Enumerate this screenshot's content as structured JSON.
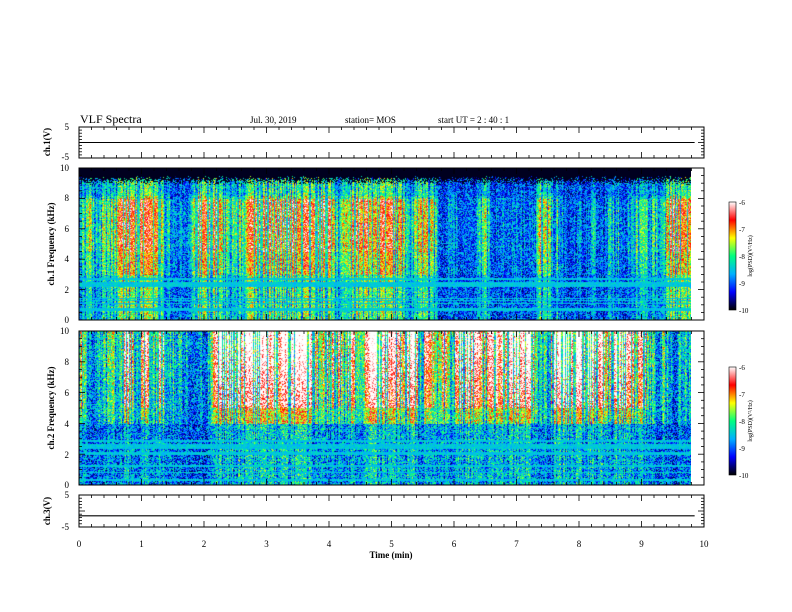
{
  "header": {
    "title": "VLF Spectra",
    "date": "Jul. 30, 2019",
    "station": "station= MOS",
    "start_ut": "start UT =  2 : 40 : 1"
  },
  "colors": {
    "colormap": [
      "#000000",
      "#0000ff",
      "#00b0ff",
      "#00ff80",
      "#ffff00",
      "#ff0000",
      "#ffffff"
    ]
  },
  "chart_data": [
    {
      "type": "line",
      "panel": "ch1-voltage",
      "ylabel": "ch.1(V)",
      "ylim": [
        -5,
        5
      ],
      "yticks": [
        5,
        -5
      ],
      "xlim": [
        0,
        10
      ],
      "series": [
        {
          "x": [
            0,
            9.85
          ],
          "y": [
            0,
            0
          ]
        }
      ]
    },
    {
      "type": "heatmap",
      "panel": "ch1-spectrogram",
      "ylabel": "ch.1 Frequency (kHz)",
      "ylim": [
        0,
        10
      ],
      "yticks": [
        0,
        2,
        4,
        6,
        8,
        10
      ],
      "xlim": [
        0,
        10
      ],
      "data_xmax": 9.85,
      "black_band_above_khz": 9.2,
      "colorbar": {
        "label": "log(PSD)(V²/Hz)",
        "range": [
          -10,
          -6
        ],
        "ticks": [
          -6,
          -7,
          -8,
          -9,
          -10
        ]
      }
    },
    {
      "type": "heatmap",
      "panel": "ch2-spectrogram",
      "ylabel": "ch.2 Frequency (kHz)",
      "ylim": [
        0,
        10
      ],
      "yticks": [
        0,
        2,
        4,
        6,
        8,
        10
      ],
      "xlim": [
        0,
        10
      ],
      "data_xmax": 9.85,
      "colorbar": {
        "label": "log(PSD)(V²/Hz)",
        "range": [
          -10,
          -6
        ],
        "ticks": [
          -6,
          -7,
          -8,
          -9,
          -10
        ]
      }
    },
    {
      "type": "line",
      "panel": "ch3-voltage",
      "ylabel": "ch.3(V)",
      "ylim": [
        -5,
        5
      ],
      "yticks": [
        5,
        -5
      ],
      "xlim": [
        0,
        10
      ],
      "xticks": [
        0,
        1,
        2,
        3,
        4,
        5,
        6,
        7,
        8,
        9,
        10
      ],
      "xlabel": "Time (min)",
      "series": [
        {
          "x": [
            0,
            9.85
          ],
          "y": [
            -1.5,
            -1.5
          ]
        }
      ]
    }
  ]
}
